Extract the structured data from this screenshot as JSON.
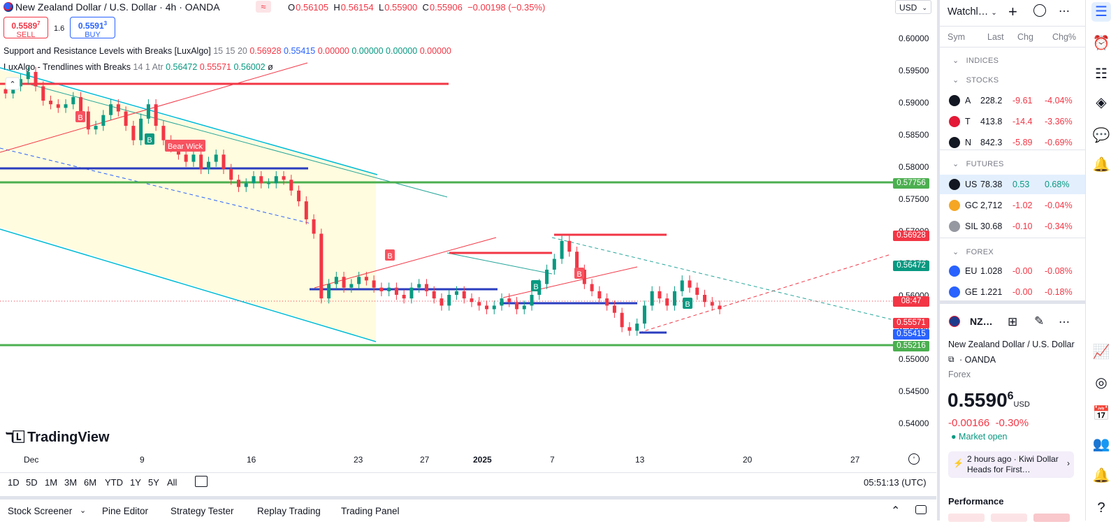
{
  "header": {
    "title": "New Zealand Dollar / U.S. Dollar · 4h · OANDA",
    "ohlc": {
      "o_label": "O",
      "o": "0.56105",
      "h_label": "H",
      "h": "0.56154",
      "l_label": "L",
      "l": "0.55900",
      "c_label": "C",
      "c": "0.55906",
      "change": "−0.00198 (−0.35%)"
    },
    "sell": {
      "price_main": "0.5589",
      "price_sup": "7",
      "label": "SELL"
    },
    "buy": {
      "price_main": "0.5591",
      "price_sup": "3",
      "label": "BUY"
    },
    "spread": "1.6",
    "currency": "USD"
  },
  "indicators": [
    {
      "name": "Support and Resistance Levels with Breaks [LuxAlgo]",
      "params": "15 15 20",
      "v1": "0.56928",
      "v2": "0.55415",
      "v3": "0.00000",
      "v4": "0.00000",
      "v5": "0.00000",
      "v6": "0.00000"
    },
    {
      "name": "LuxAlgo - Trendlines with Breaks",
      "params": "14 1 Atr",
      "v1": "0.56472",
      "v2": "0.55571",
      "v3": "0.56002",
      "v4": "ø"
    }
  ],
  "price_axis": [
    "0.60000",
    "0.59500",
    "0.59000",
    "0.58500",
    "0.58000",
    "0.57500",
    "0.57000",
    "0.56500",
    "0.56000",
    "0.55500",
    "0.55000",
    "0.54500",
    "0.54000"
  ],
  "price_labels": [
    {
      "text": "0.57756",
      "color": "#4caf50"
    },
    {
      "text": "0.56928",
      "color": "#f23645"
    },
    {
      "text": "0.56472",
      "color": "#089981"
    },
    {
      "text": "08:47",
      "color": "#f23645"
    },
    {
      "text": "0.55571",
      "color": "#f23645"
    },
    {
      "text": "0.55415",
      "color": "#2962ff"
    },
    {
      "text": "0.55216",
      "color": "#4caf50"
    }
  ],
  "time_axis": [
    "Dec",
    "9",
    "16",
    "23",
    "27",
    "2025",
    "7",
    "13",
    "20",
    "27"
  ],
  "chart_marks": {
    "b_label": "B",
    "bear_wick": "Bear Wick"
  },
  "watermark": "TradingView",
  "range_buttons": [
    "1D",
    "5D",
    "1M",
    "3M",
    "6M",
    "YTD",
    "1Y",
    "5Y",
    "All"
  ],
  "clock": "05:51:13 (UTC)",
  "bottom_tabs": [
    "Stock Screener",
    "Pine Editor",
    "Strategy Tester",
    "Replay Trading",
    "Trading Panel"
  ],
  "watchlist": {
    "title": "Watchl…",
    "columns": [
      "Sym",
      "Last",
      "Chg",
      "Chg%"
    ],
    "sections": {
      "indices": "INDICES",
      "stocks": "STOCKS",
      "futures": "FUTURES",
      "forex": "FOREX"
    },
    "stocks": [
      {
        "sym": "A",
        "last": "228.2",
        "chg": "-9.61",
        "chgp": "-4.04%",
        "color": "#131722"
      },
      {
        "sym": "T",
        "last": "413.8",
        "chg": "-14.4",
        "chgp": "-3.36%",
        "color": "#e31937"
      },
      {
        "sym": "N",
        "last": "842.3",
        "chg": "-5.89",
        "chgp": "-0.69%",
        "color": "#131722"
      }
    ],
    "futures": [
      {
        "sym": "US",
        "last": "78.38",
        "chg": "0.53",
        "chgp": "0.68%",
        "color": "#131722",
        "up": true
      },
      {
        "sym": "GC",
        "last": "2,712",
        "chg": "-1.02",
        "chgp": "-0.04%",
        "color": "#f5a623",
        "up": false
      },
      {
        "sym": "SIL",
        "last": "30.68",
        "chg": "-0.10",
        "chgp": "-0.34%",
        "color": "#9598a1",
        "up": false
      }
    ],
    "forex": [
      {
        "sym": "EU",
        "last": "1.028",
        "chg": "-0.00",
        "chgp": "-0.08%",
        "color": "#2962ff"
      },
      {
        "sym": "GE",
        "last": "1.221",
        "chg": "-0.00",
        "chgp": "-0.18%",
        "color": "#2962ff"
      }
    ]
  },
  "details": {
    "symbol": "NZ…",
    "name": "New Zealand Dollar / U.S. Dollar",
    "exchange": "OANDA",
    "type": "Forex",
    "price_main": "0.5590",
    "price_sup": "6",
    "currency": "USD",
    "change": "-0.00166",
    "change_pct": "-0.30%",
    "market_status": "Market open",
    "news": "2 hours ago · Kiwi Dollar Heads for First…",
    "performance_label": "Performance"
  },
  "chart_data": {
    "type": "candlestick",
    "title": "New Zealand Dollar / U.S. Dollar · 4h · OANDA",
    "ylim": [
      0.5375,
      0.6025
    ],
    "close_path": [
      0.5895,
      0.5905,
      0.5915,
      0.5925,
      0.5905,
      0.5885,
      0.588,
      0.5875,
      0.588,
      0.589,
      0.587,
      0.5845,
      0.585,
      0.5865,
      0.588,
      0.587,
      0.585,
      0.583,
      0.586,
      0.588,
      0.585,
      0.583,
      0.582,
      0.581,
      0.58,
      0.581,
      0.579,
      0.58,
      0.581,
      0.579,
      0.5775,
      0.5765,
      0.577,
      0.578,
      0.577,
      0.577,
      0.578,
      0.5775,
      0.576,
      0.5745,
      0.572,
      0.57,
      0.561,
      0.563,
      0.564,
      0.5625,
      0.563,
      0.564,
      0.5635,
      0.5625,
      0.562,
      0.5625,
      0.5615,
      0.561,
      0.5625,
      0.563,
      0.562,
      0.561,
      0.56,
      0.5615,
      0.562,
      0.561,
      0.5605,
      0.56,
      0.5595,
      0.56,
      0.561,
      0.5605,
      0.5595,
      0.56,
      0.5615,
      0.563,
      0.565,
      0.5665,
      0.569,
      0.5675,
      0.565,
      0.563,
      0.562,
      0.561,
      0.56,
      0.559,
      0.557,
      0.5565,
      0.5575,
      0.56,
      0.562,
      0.561,
      0.56,
      0.562,
      0.5635,
      0.5625,
      0.5615,
      0.5605,
      0.56,
      0.5595
    ],
    "levels": {
      "resistance_1": 0.5928,
      "support_1": 0.5799,
      "green_top": 0.57756,
      "green_bottom": 0.55216,
      "res_2": 0.56928,
      "sup_2": 0.55415,
      "sup_3": 0.5563
    }
  }
}
